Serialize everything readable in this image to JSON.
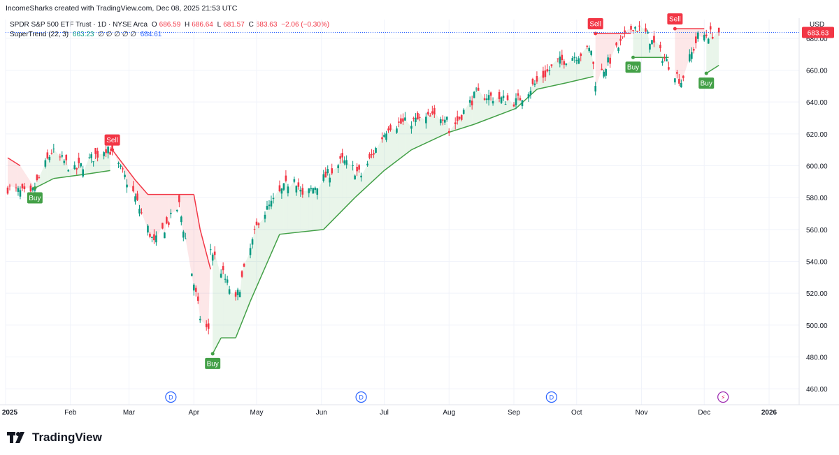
{
  "header": {
    "created_by": "IncomeSharks created with TradingView.com, Dec 08, 2025 21:53 UTC"
  },
  "legend": {
    "symbol": "SPDR S&P 500 ETF Trust · 1D · NYSE Arca",
    "o_label": "O",
    "o_value": "686.59",
    "h_label": "H",
    "h_value": "686.64",
    "l_label": "L",
    "l_value": "681.57",
    "c_label": "C",
    "c_value": "683.63",
    "change": "−2.06 (−0.30%)",
    "indicator_name": "SuperTrend (22, 3)",
    "indicator_value": "663.23",
    "indicator_zeros": "∅ ∅ ∅ ∅ ∅",
    "indicator_value2": "684.61"
  },
  "currency": "USD",
  "brand": "TradingView",
  "chart_data": {
    "type": "candlestick",
    "symbol": "SPDR S&P 500 ETF Trust",
    "timeframe": "1D",
    "exchange": "NYSE Arca",
    "ylim": [
      450,
      690
    ],
    "y_ticks": [
      "460.00",
      "480.00",
      "500.00",
      "520.00",
      "540.00",
      "560.00",
      "580.00",
      "600.00",
      "620.00",
      "640.00",
      "660.00",
      "680.00"
    ],
    "x_ticks": [
      "2025",
      "Feb",
      "Mar",
      "Apr",
      "May",
      "Jun",
      "Jul",
      "Aug",
      "Sep",
      "Oct",
      "Nov",
      "Dec",
      "2026"
    ],
    "last_price": "683.63",
    "colors": {
      "up": "#089981",
      "down": "#f23645",
      "trend_up": "#43a047",
      "trend_down": "#f23645",
      "price_line": "#2962ff"
    },
    "anchors": [
      {
        "date": "2025-01-02",
        "close": 586
      },
      {
        "date": "2025-01-13",
        "close": 581
      },
      {
        "date": "2025-01-23",
        "close": 609
      },
      {
        "date": "2025-02-03",
        "close": 597
      },
      {
        "date": "2025-02-19",
        "close": 612
      },
      {
        "date": "2025-03-03",
        "close": 583
      },
      {
        "date": "2025-03-13",
        "close": 551
      },
      {
        "date": "2025-03-25",
        "close": 575
      },
      {
        "date": "2025-04-04",
        "close": 505
      },
      {
        "date": "2025-04-08",
        "close": 496
      },
      {
        "date": "2025-04-09",
        "close": 548
      },
      {
        "date": "2025-04-21",
        "close": 515
      },
      {
        "date": "2025-05-02",
        "close": 566
      },
      {
        "date": "2025-05-19",
        "close": 594
      },
      {
        "date": "2025-05-23",
        "close": 580
      },
      {
        "date": "2025-06-11",
        "close": 603
      },
      {
        "date": "2025-06-20",
        "close": 594
      },
      {
        "date": "2025-07-03",
        "close": 625
      },
      {
        "date": "2025-07-31",
        "close": 632
      },
      {
        "date": "2025-08-01",
        "close": 621
      },
      {
        "date": "2025-08-14",
        "close": 645
      },
      {
        "date": "2025-09-02",
        "close": 640
      },
      {
        "date": "2025-09-22",
        "close": 665
      },
      {
        "date": "2025-10-08",
        "close": 673
      },
      {
        "date": "2025-10-10",
        "close": 653
      },
      {
        "date": "2025-10-28",
        "close": 688
      },
      {
        "date": "2025-11-03",
        "close": 683
      },
      {
        "date": "2025-11-20",
        "close": 653
      },
      {
        "date": "2025-11-28",
        "close": 681
      },
      {
        "date": "2025-12-08",
        "close": 683.63
      }
    ],
    "supertrend": [
      {
        "date": "2025-01-02",
        "value": 605,
        "trend": "down"
      },
      {
        "date": "2025-01-08",
        "value": 600,
        "trend": "down"
      },
      {
        "date": "2025-01-15",
        "value": 586,
        "trend": "up"
      },
      {
        "date": "2025-01-24",
        "value": 592,
        "trend": "up"
      },
      {
        "date": "2025-02-10",
        "value": 595,
        "trend": "up"
      },
      {
        "date": "2025-02-20",
        "value": 597,
        "trend": "up"
      },
      {
        "date": "2025-02-21",
        "value": 610,
        "trend": "down"
      },
      {
        "date": "2025-03-04",
        "value": 591,
        "trend": "down"
      },
      {
        "date": "2025-03-10",
        "value": 582,
        "trend": "down"
      },
      {
        "date": "2025-04-01",
        "value": 582,
        "trend": "down"
      },
      {
        "date": "2025-04-04",
        "value": 560,
        "trend": "down"
      },
      {
        "date": "2025-04-09",
        "value": 535,
        "trend": "down"
      },
      {
        "date": "2025-04-10",
        "value": 482,
        "trend": "up"
      },
      {
        "date": "2025-04-14",
        "value": 492,
        "trend": "up"
      },
      {
        "date": "2025-04-21",
        "value": 492,
        "trend": "up"
      },
      {
        "date": "2025-04-28",
        "value": 515,
        "trend": "up"
      },
      {
        "date": "2025-05-12",
        "value": 557,
        "trend": "up"
      },
      {
        "date": "2025-06-02",
        "value": 560,
        "trend": "up"
      },
      {
        "date": "2025-06-17",
        "value": 580,
        "trend": "up"
      },
      {
        "date": "2025-07-01",
        "value": 597,
        "trend": "up"
      },
      {
        "date": "2025-07-14",
        "value": 610,
        "trend": "up"
      },
      {
        "date": "2025-08-01",
        "value": 621,
        "trend": "up"
      },
      {
        "date": "2025-08-13",
        "value": 626,
        "trend": "up"
      },
      {
        "date": "2025-09-02",
        "value": 636,
        "trend": "up"
      },
      {
        "date": "2025-09-12",
        "value": 648,
        "trend": "up"
      },
      {
        "date": "2025-09-26",
        "value": 652,
        "trend": "up"
      },
      {
        "date": "2025-10-09",
        "value": 656,
        "trend": "up"
      },
      {
        "date": "2025-10-10",
        "value": 683,
        "trend": "down"
      },
      {
        "date": "2025-10-27",
        "value": 683,
        "trend": "down"
      },
      {
        "date": "2025-10-28",
        "value": 668,
        "trend": "up"
      },
      {
        "date": "2025-11-14",
        "value": 668,
        "trend": "up"
      },
      {
        "date": "2025-11-17",
        "value": 686,
        "trend": "down"
      },
      {
        "date": "2025-12-01",
        "value": 686,
        "trend": "down"
      },
      {
        "date": "2025-12-02",
        "value": 658,
        "trend": "up"
      },
      {
        "date": "2025-12-08",
        "value": 663,
        "trend": "up"
      }
    ],
    "signals": [
      {
        "date": "2025-01-15",
        "type": "Buy"
      },
      {
        "date": "2025-02-21",
        "type": "Sell"
      },
      {
        "date": "2025-04-10",
        "type": "Buy"
      },
      {
        "date": "2025-10-10",
        "type": "Sell"
      },
      {
        "date": "2025-10-28",
        "type": "Buy"
      },
      {
        "date": "2025-11-17",
        "type": "Sell"
      },
      {
        "date": "2025-12-02",
        "type": "Buy"
      }
    ],
    "dividend_markers": [
      {
        "date": "2025-03-21",
        "label": "D"
      },
      {
        "date": "2025-06-20",
        "label": "D"
      },
      {
        "date": "2025-09-19",
        "label": "D"
      }
    ],
    "event_markers": [
      {
        "date": "2025-12-10",
        "label": "⚡"
      }
    ]
  }
}
